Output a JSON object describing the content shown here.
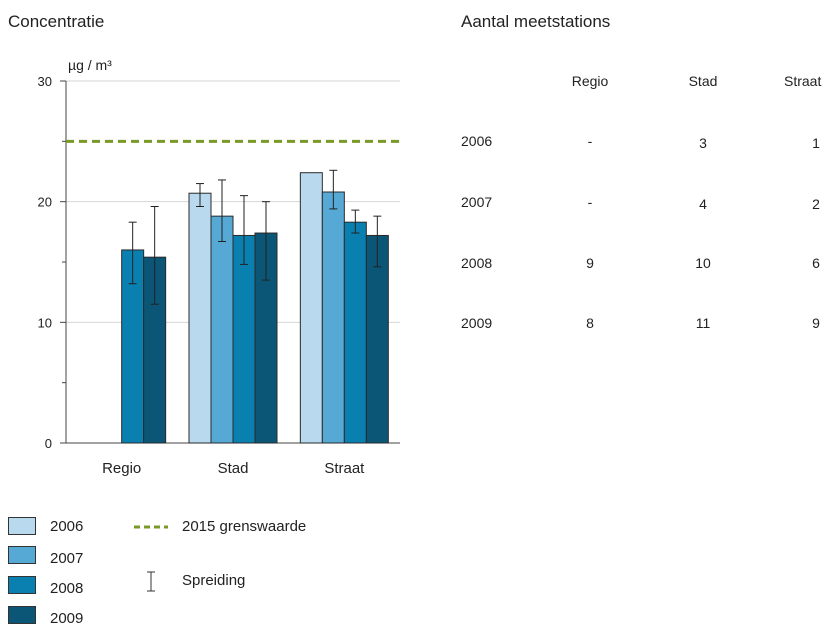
{
  "chart_data": {
    "type": "bar",
    "title": "Concentratie",
    "ylabel": "µg / m³",
    "ylim": [
      0,
      30
    ],
    "yticks": [
      0,
      10,
      20,
      30
    ],
    "categories": [
      "Regio",
      "Stad",
      "Straat"
    ],
    "series": [
      {
        "name": "2006",
        "color": "#b8d9ee",
        "values": [
          null,
          20.7,
          22.4
        ],
        "err_low": [
          null,
          19.6,
          22.4
        ],
        "err_high": [
          null,
          21.5,
          22.4
        ]
      },
      {
        "name": "2007",
        "color": "#56a9d5",
        "values": [
          null,
          18.8,
          20.8
        ],
        "err_low": [
          null,
          16.7,
          19.4
        ],
        "err_high": [
          null,
          21.8,
          22.6
        ]
      },
      {
        "name": "2008",
        "color": "#0a80b0",
        "values": [
          16.0,
          17.2,
          18.3
        ],
        "err_low": [
          13.2,
          14.8,
          17.4
        ],
        "err_high": [
          18.3,
          20.5,
          19.3
        ]
      },
      {
        "name": "2009",
        "color": "#0b5576",
        "values": [
          15.4,
          17.4,
          17.2
        ],
        "err_low": [
          11.5,
          13.5,
          14.6
        ],
        "err_high": [
          19.6,
          20.0,
          18.8
        ]
      }
    ],
    "reference_line": {
      "label": "2015 grenswaarde",
      "value": 25,
      "color": "#7a9a28"
    },
    "errorbar_label": "Spreiding",
    "grid": true,
    "legend_position": "bottom-left"
  },
  "table": {
    "title": "Aantal meetstations",
    "columns": [
      "Regio",
      "Stad",
      "Straat"
    ],
    "rows": [
      {
        "year": "2006",
        "values": [
          "-",
          "3",
          "1"
        ]
      },
      {
        "year": "2007",
        "values": [
          "-",
          "4",
          "2"
        ]
      },
      {
        "year": "2008",
        "values": [
          "9",
          "10",
          "6"
        ]
      },
      {
        "year": "2009",
        "values": [
          "8",
          "11",
          "9"
        ]
      }
    ]
  }
}
